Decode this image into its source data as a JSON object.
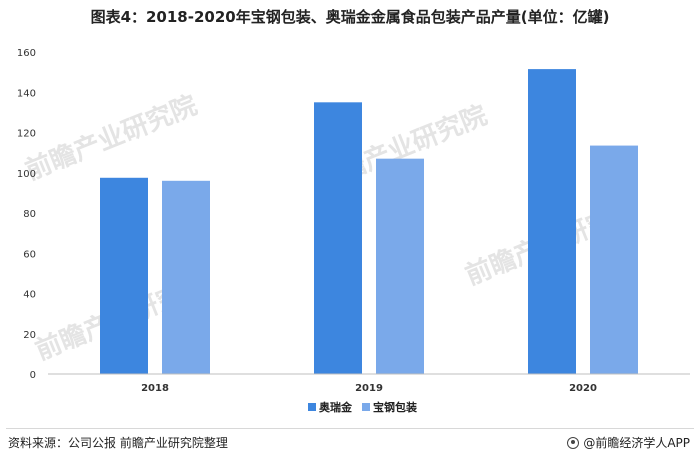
{
  "title": "图表4：2018-2020年宝钢包装、奥瑞金金属食品包装产品产量(单位：亿罐)",
  "source": "资料来源：公司公报 前瞻产业研究院整理",
  "brand": "@前瞻经济学人APP",
  "watermark": "前瞻产业研究院",
  "chart_data": {
    "type": "bar",
    "categories": [
      "2018",
      "2019",
      "2020"
    ],
    "series": [
      {
        "name": "奥瑞金",
        "values": [
          97.5,
          135,
          151.5
        ],
        "color": "#3d86df"
      },
      {
        "name": "宝钢包装",
        "values": [
          96,
          107,
          113.5
        ],
        "color": "#7aa9ea"
      }
    ],
    "ylim": [
      0,
      160
    ],
    "yticks": [
      0,
      20,
      40,
      60,
      80,
      100,
      120,
      140,
      160
    ],
    "grid": false,
    "legend": "bottom-center"
  }
}
